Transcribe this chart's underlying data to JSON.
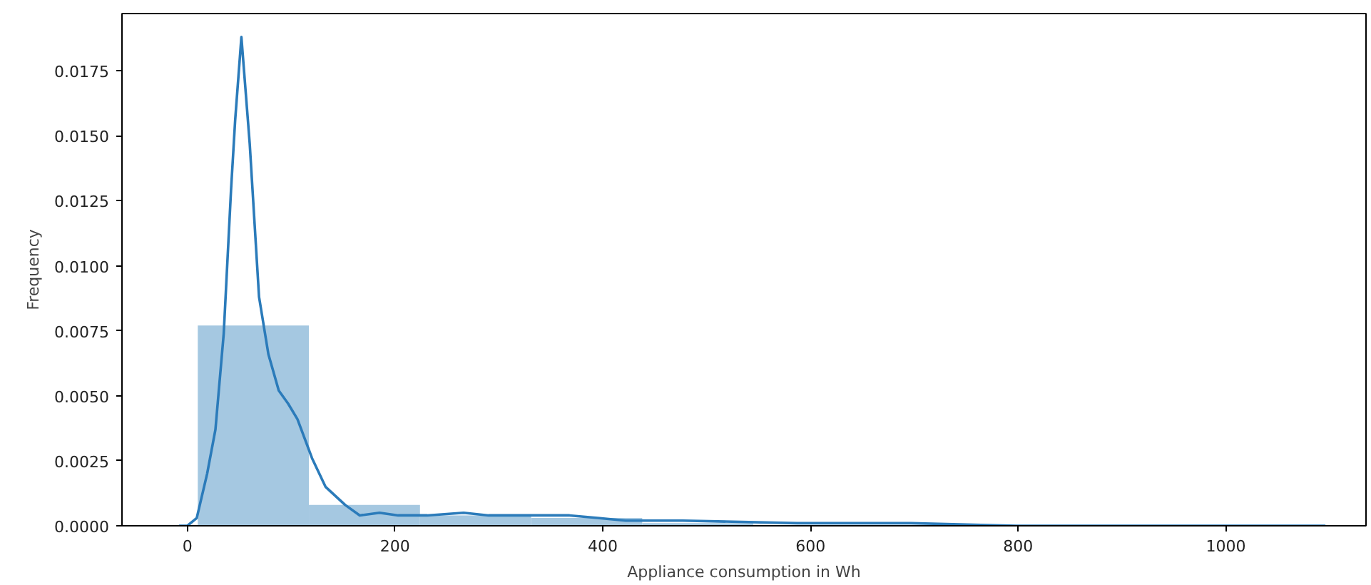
{
  "chart_data": {
    "type": "histogram",
    "xlabel": "Appliance consumption in Wh",
    "ylabel": "Frequency",
    "bins": [
      10,
      117,
      224,
      331,
      438,
      545,
      652,
      759,
      866,
      973,
      1080
    ],
    "values": [
      0.0077,
      0.0008,
      0.0004,
      0.0003,
      0.0001,
      null,
      null,
      null,
      null,
      null
    ],
    "color": "#a5c8e1",
    "series": [
      {
        "type": "line",
        "color": "#2b7bba",
        "x": [
          -8,
          0,
          9,
          19,
          27,
          35,
          42,
          46,
          52,
          60,
          69,
          78,
          88,
          97,
          106,
          120,
          133,
          152,
          166,
          185,
          203,
          231,
          266,
          290,
          331,
          368,
          395,
          422,
          477,
          587,
          697,
          798,
          935,
          1096
        ],
        "values": [
          0,
          0,
          0.0003,
          0.002,
          0.0037,
          0.0074,
          0.0129,
          0.0156,
          0.0188,
          0.0147,
          0.0088,
          0.0066,
          0.0052,
          0.0047,
          0.0041,
          0.0026,
          0.0015,
          0.0008,
          0.0004,
          0.0005,
          0.0004,
          0.0004,
          0.0005,
          0.0004,
          0.0004,
          0.0004,
          0.0003,
          0.0002,
          0.0002,
          0.0001,
          0.0001,
          0,
          0,
          0
        ]
      }
    ],
    "xlim": [
      -63,
      1135
    ],
    "ylim": [
      0,
      0.0197
    ],
    "xticks": [
      0,
      200,
      400,
      600,
      800,
      1000
    ],
    "yticks": [
      {
        "value": 0,
        "label": "0.0000"
      },
      {
        "value": 0.0025,
        "label": "0.0025"
      },
      {
        "value": 0.005,
        "label": "0.0050"
      },
      {
        "value": 0.0075,
        "label": "0.0075"
      },
      {
        "value": 0.01,
        "label": "0.0100"
      },
      {
        "value": 0.0125,
        "label": "0.0125"
      },
      {
        "value": 0.015,
        "label": "0.0150"
      },
      {
        "value": 0.0175,
        "label": "0.0175"
      }
    ],
    "grid": false
  }
}
